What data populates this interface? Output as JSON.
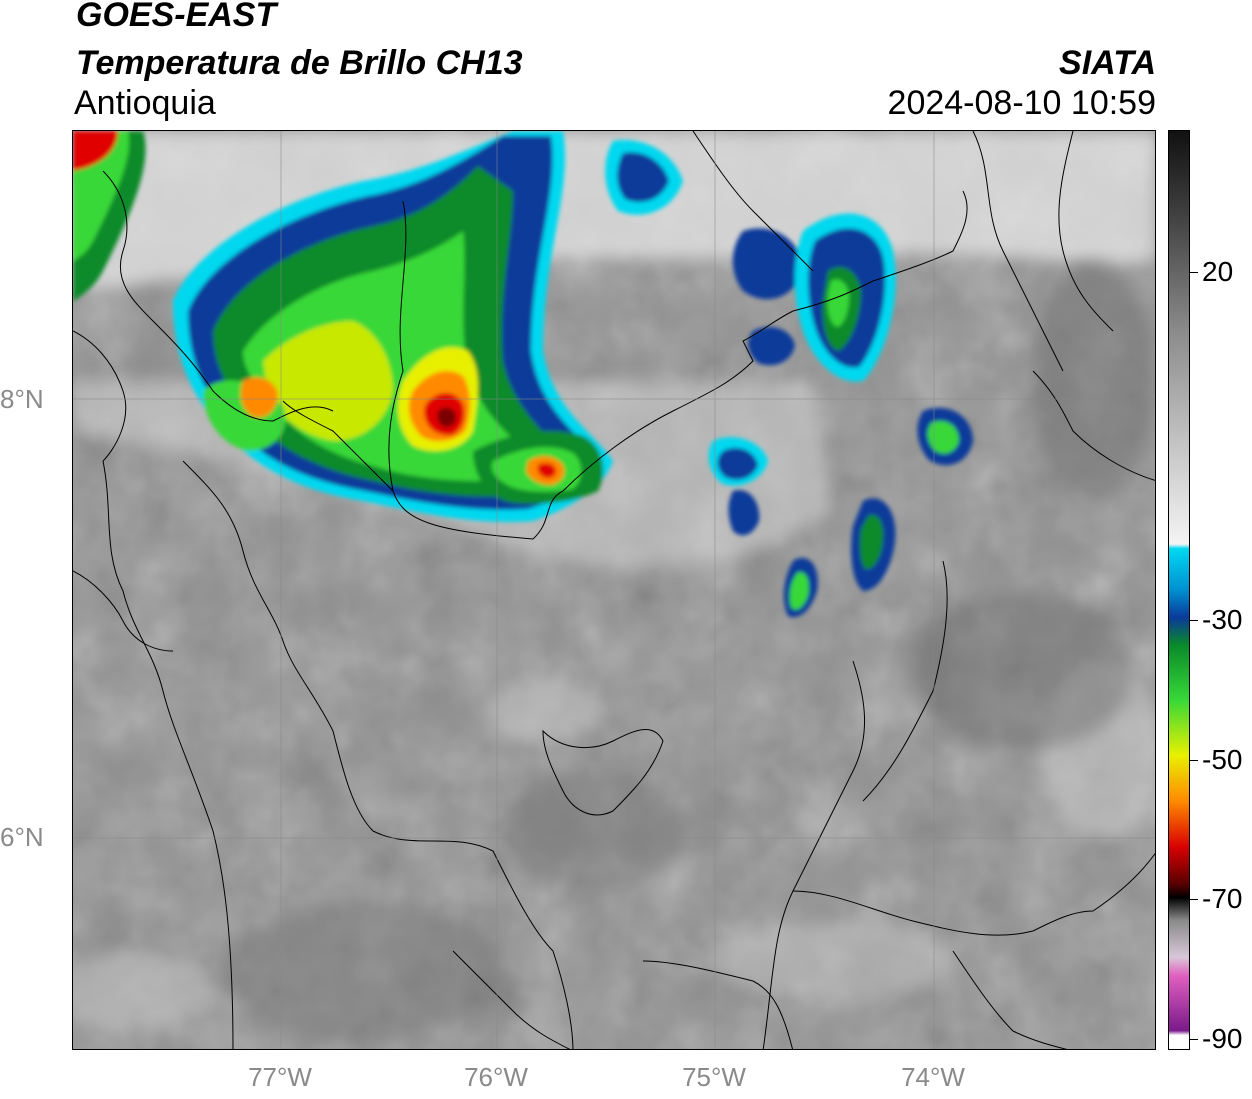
{
  "header": {
    "satellite": "GOES-EAST",
    "product": "Temperatura de Brillo CH13",
    "region": "Antioquia",
    "brand": "SIATA",
    "timestamp": "2024-08-10 10:59"
  },
  "map": {
    "lat_labels": [
      "8°N",
      "6°N"
    ],
    "lon_labels": [
      "77°W",
      "76°W",
      "75°W",
      "74°W"
    ],
    "grid": true
  },
  "colorbar": {
    "labels": [
      "20",
      "-30",
      "-50",
      "-70",
      "-90"
    ],
    "colors": {
      "warm_gray_top": "#111111",
      "gray_mid": "#8c8c8c",
      "white": "#f4f4f4",
      "cyan": "#00d8f0",
      "blue": "#0a3a9a",
      "dark_green": "#0a8a2a",
      "green": "#38d838",
      "yellow": "#e8f000",
      "orange": "#ff8a00",
      "red": "#d80000",
      "dark_red": "#5a0000",
      "black": "#000000",
      "pink": "#e060c0",
      "purple": "#7a1a8a"
    }
  }
}
